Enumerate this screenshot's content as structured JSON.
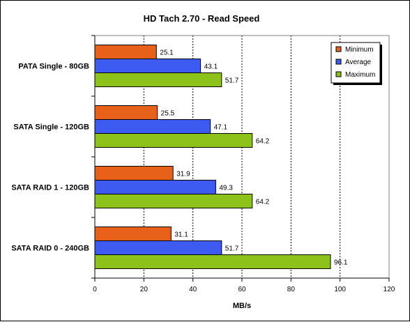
{
  "chart_data": {
    "type": "bar",
    "orientation": "horizontal",
    "title": "HD Tach 2.70 - Read Speed",
    "xlabel": "MB/s",
    "ylabel": "",
    "xlim": [
      0,
      120
    ],
    "x_ticks": [
      0,
      20,
      40,
      60,
      80,
      100,
      120
    ],
    "grid": "vertical dashed",
    "legend_position": "top-right",
    "categories": [
      "PATA Single - 80GB",
      "SATA Single - 120GB",
      "SATA RAID 1 - 120GB",
      "SATA RAID 0 - 240GB"
    ],
    "series": [
      {
        "name": "Minimum",
        "color": "#e8611a",
        "values": [
          25.1,
          25.5,
          31.9,
          31.1
        ]
      },
      {
        "name": "Average",
        "color": "#3d5bf0",
        "values": [
          43.1,
          47.1,
          49.3,
          51.7
        ]
      },
      {
        "name": "Maximum",
        "color": "#8cc21a",
        "values": [
          51.7,
          64.2,
          64.2,
          96.1
        ]
      }
    ]
  }
}
